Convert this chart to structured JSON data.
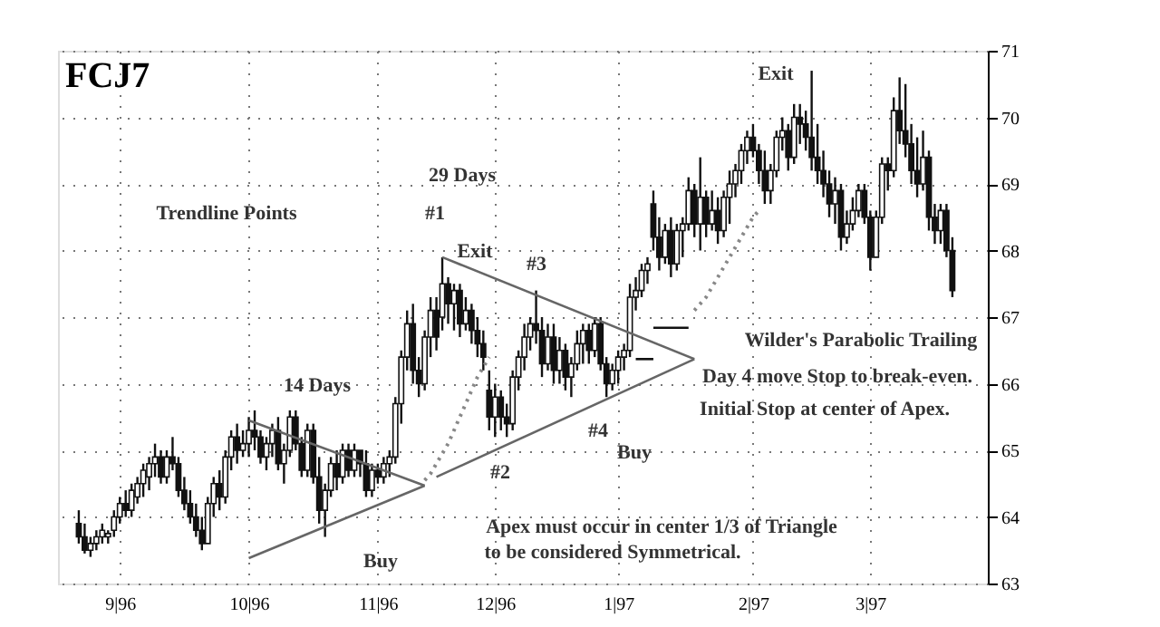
{
  "chart_data": {
    "type": "candlestick",
    "title": "FCJ7",
    "categories": [
      null,
      null,
      null,
      null,
      null,
      null,
      null,
      "9|96",
      null,
      null,
      null,
      null,
      null,
      null,
      null,
      null,
      null,
      null,
      null,
      null,
      null,
      null,
      null,
      null,
      null,
      null,
      null,
      null,
      null,
      "10|96",
      null,
      null,
      null,
      null,
      null,
      null,
      null,
      null,
      null,
      null,
      null,
      null,
      null,
      null,
      null,
      null,
      null,
      null,
      null,
      null,
      null,
      "11|96",
      null,
      null,
      null,
      null,
      null,
      null,
      null,
      null,
      null,
      null,
      null,
      null,
      null,
      null,
      null,
      null,
      null,
      null,
      null,
      "12|96",
      null,
      null,
      null,
      null,
      null,
      null,
      null,
      null,
      null,
      null,
      null,
      null,
      null,
      null,
      null,
      null,
      null,
      null,
      null,
      null,
      "1|97",
      null,
      null,
      null,
      null,
      null,
      null,
      null,
      null,
      null,
      null,
      null,
      null,
      null,
      null,
      null,
      null,
      null,
      null,
      null,
      null,
      null,
      null,
      "2|97",
      null,
      null,
      null,
      null,
      null,
      null,
      null,
      null,
      null,
      null,
      null,
      null,
      null,
      null,
      null,
      null,
      null,
      null,
      null,
      "3|97",
      null,
      null,
      null,
      null,
      null,
      null,
      null,
      null,
      null,
      null,
      null,
      null,
      null,
      null
    ],
    "ohlc": [
      [
        63.9,
        64.1,
        63.6,
        63.7
      ],
      [
        63.7,
        63.9,
        63.45,
        63.5
      ],
      [
        63.5,
        63.7,
        63.4,
        63.6
      ],
      [
        63.6,
        63.8,
        63.5,
        63.7
      ],
      [
        63.7,
        63.9,
        63.6,
        63.8
      ],
      [
        63.7,
        63.8,
        63.6,
        63.75
      ],
      [
        63.8,
        64.1,
        63.7,
        64.0
      ],
      [
        64.0,
        64.3,
        63.9,
        64.2
      ],
      [
        64.2,
        64.4,
        64.0,
        64.1
      ],
      [
        64.1,
        64.5,
        64.0,
        64.4
      ],
      [
        64.3,
        64.6,
        64.2,
        64.5
      ],
      [
        64.5,
        64.8,
        64.3,
        64.7
      ],
      [
        64.6,
        64.9,
        64.4,
        64.8
      ],
      [
        64.8,
        65.1,
        64.6,
        64.9
      ],
      [
        64.9,
        65.0,
        64.5,
        64.6
      ],
      [
        64.6,
        65.0,
        64.5,
        64.9
      ],
      [
        64.9,
        65.2,
        64.7,
        64.8
      ],
      [
        64.8,
        64.9,
        64.3,
        64.4
      ],
      [
        64.4,
        64.6,
        64.1,
        64.2
      ],
      [
        64.2,
        64.4,
        63.9,
        64.0
      ],
      [
        64.0,
        64.2,
        63.7,
        63.8
      ],
      [
        63.8,
        64.0,
        63.5,
        63.6
      ],
      [
        63.6,
        64.3,
        63.6,
        64.2
      ],
      [
        64.2,
        64.6,
        64.0,
        64.5
      ],
      [
        64.5,
        64.7,
        64.1,
        64.3
      ],
      [
        64.3,
        65.0,
        64.2,
        64.9
      ],
      [
        64.9,
        65.3,
        64.7,
        65.2
      ],
      [
        65.2,
        65.4,
        64.8,
        65.0
      ],
      [
        65.0,
        65.3,
        64.9,
        65.1
      ],
      [
        65.1,
        65.5,
        64.9,
        65.3
      ],
      [
        65.3,
        65.6,
        65.0,
        65.2
      ],
      [
        65.2,
        65.3,
        64.8,
        64.9
      ],
      [
        64.9,
        65.2,
        64.7,
        65.1
      ],
      [
        65.1,
        65.4,
        64.9,
        65.3
      ],
      [
        65.3,
        65.5,
        64.7,
        64.8
      ],
      [
        64.8,
        65.1,
        64.5,
        65.0
      ],
      [
        65.0,
        65.6,
        64.9,
        65.5
      ],
      [
        65.5,
        65.6,
        65.0,
        65.1
      ],
      [
        65.1,
        65.2,
        64.6,
        64.7
      ],
      [
        64.7,
        65.4,
        64.6,
        65.3
      ],
      [
        65.3,
        65.4,
        64.5,
        64.6
      ],
      [
        64.6,
        64.9,
        63.9,
        64.1
      ],
      [
        64.1,
        64.5,
        63.7,
        64.4
      ],
      [
        64.4,
        64.9,
        64.3,
        64.8
      ],
      [
        64.8,
        65.0,
        64.4,
        64.6
      ],
      [
        64.6,
        65.1,
        64.5,
        65.0
      ],
      [
        65.0,
        65.1,
        64.6,
        64.7
      ],
      [
        64.7,
        65.1,
        64.6,
        65.0
      ],
      [
        65.0,
        65.0,
        64.6,
        64.8
      ],
      [
        64.8,
        65.0,
        64.3,
        64.4
      ],
      [
        64.4,
        64.8,
        64.3,
        64.7
      ],
      [
        64.7,
        64.8,
        64.5,
        64.6
      ],
      [
        64.6,
        64.9,
        64.5,
        64.8
      ],
      [
        64.8,
        65.0,
        64.6,
        64.9
      ],
      [
        64.9,
        65.8,
        64.8,
        65.7
      ],
      [
        65.7,
        66.5,
        65.4,
        66.4
      ],
      [
        66.4,
        67.1,
        66.2,
        66.9
      ],
      [
        66.9,
        67.2,
        66.0,
        66.2
      ],
      [
        66.2,
        66.4,
        65.8,
        66.0
      ],
      [
        66.0,
        66.8,
        65.9,
        66.7
      ],
      [
        66.7,
        67.3,
        66.4,
        67.1
      ],
      [
        67.1,
        67.3,
        66.5,
        66.7
      ],
      [
        67.0,
        67.9,
        66.8,
        67.5
      ],
      [
        67.5,
        67.6,
        66.9,
        67.2
      ],
      [
        67.2,
        67.5,
        66.8,
        67.4
      ],
      [
        67.4,
        67.5,
        66.7,
        66.9
      ],
      [
        66.9,
        67.3,
        66.8,
        67.1
      ],
      [
        67.1,
        67.2,
        66.6,
        66.8
      ],
      [
        66.8,
        67.0,
        66.4,
        66.6
      ],
      [
        66.6,
        66.8,
        66.2,
        66.4
      ],
      [
        65.9,
        66.2,
        65.3,
        65.5
      ],
      [
        65.5,
        66.0,
        65.2,
        65.8
      ],
      [
        65.8,
        65.9,
        65.3,
        65.5
      ],
      [
        65.5,
        65.7,
        65.2,
        65.4
      ],
      [
        65.4,
        66.2,
        65.3,
        66.1
      ],
      [
        66.1,
        66.5,
        65.9,
        66.4
      ],
      [
        66.4,
        66.9,
        66.2,
        66.7
      ],
      [
        66.7,
        67.0,
        66.5,
        66.9
      ],
      [
        66.9,
        67.4,
        66.6,
        66.8
      ],
      [
        66.8,
        67.0,
        66.1,
        66.3
      ],
      [
        66.3,
        66.9,
        66.2,
        66.7
      ],
      [
        66.7,
        66.9,
        66.0,
        66.2
      ],
      [
        66.2,
        66.7,
        66.0,
        66.5
      ],
      [
        66.5,
        66.6,
        65.9,
        66.1
      ],
      [
        66.1,
        66.4,
        65.8,
        66.3
      ],
      [
        66.3,
        66.8,
        66.2,
        66.6
      ],
      [
        66.6,
        66.9,
        66.3,
        66.8
      ],
      [
        66.8,
        66.9,
        66.3,
        66.5
      ],
      [
        66.5,
        67.0,
        66.4,
        66.9
      ],
      [
        66.9,
        67.0,
        66.2,
        66.3
      ],
      [
        66.3,
        66.4,
        65.8,
        66.0
      ],
      [
        66.0,
        66.3,
        65.9,
        66.2
      ],
      [
        66.2,
        66.5,
        66.0,
        66.4
      ],
      [
        66.4,
        66.6,
        66.2,
        66.5
      ],
      [
        66.5,
        67.5,
        66.4,
        67.3
      ],
      [
        67.3,
        67.6,
        67.1,
        67.4
      ],
      [
        67.4,
        67.8,
        67.3,
        67.7
      ],
      [
        67.7,
        67.9,
        67.5,
        67.8
      ],
      [
        68.7,
        68.9,
        68.0,
        68.2
      ],
      [
        68.2,
        68.5,
        67.7,
        67.9
      ],
      [
        67.9,
        68.4,
        67.8,
        68.3
      ],
      [
        68.3,
        68.5,
        67.6,
        67.8
      ],
      [
        67.8,
        68.4,
        67.7,
        68.3
      ],
      [
        68.3,
        68.5,
        67.9,
        68.4
      ],
      [
        68.4,
        69.1,
        68.3,
        68.9
      ],
      [
        68.9,
        69.0,
        68.2,
        68.4
      ],
      [
        68.4,
        69.4,
        68.0,
        68.8
      ],
      [
        68.8,
        68.9,
        68.2,
        68.4
      ],
      [
        68.4,
        68.9,
        68.3,
        68.6
      ],
      [
        68.6,
        68.8,
        68.1,
        68.3
      ],
      [
        68.3,
        68.9,
        68.2,
        68.8
      ],
      [
        68.8,
        69.2,
        68.4,
        69.0
      ],
      [
        69.0,
        69.3,
        68.8,
        69.2
      ],
      [
        69.2,
        69.6,
        69.0,
        69.5
      ],
      [
        69.5,
        69.8,
        69.3,
        69.7
      ],
      [
        69.7,
        69.9,
        69.4,
        69.5
      ],
      [
        69.5,
        69.6,
        69.0,
        69.2
      ],
      [
        69.2,
        69.5,
        68.7,
        68.9
      ],
      [
        68.9,
        69.3,
        68.7,
        69.2
      ],
      [
        69.2,
        69.8,
        69.1,
        69.7
      ],
      [
        69.7,
        70.0,
        69.5,
        69.8
      ],
      [
        69.8,
        69.9,
        69.2,
        69.4
      ],
      [
        69.4,
        70.2,
        69.3,
        70.0
      ],
      [
        70.0,
        70.2,
        69.6,
        69.9
      ],
      [
        69.9,
        70.1,
        69.5,
        69.7
      ],
      [
        69.7,
        70.7,
        69.2,
        69.4
      ],
      [
        69.4,
        69.9,
        69.0,
        69.2
      ],
      [
        69.2,
        69.5,
        68.8,
        69.0
      ],
      [
        69.0,
        69.2,
        68.5,
        68.7
      ],
      [
        68.7,
        69.1,
        68.4,
        68.9
      ],
      [
        68.9,
        69.0,
        68.0,
        68.2
      ],
      [
        68.2,
        68.6,
        68.1,
        68.4
      ],
      [
        68.4,
        68.8,
        68.3,
        68.6
      ],
      [
        68.6,
        69.0,
        68.5,
        68.9
      ],
      [
        68.9,
        69.0,
        68.4,
        68.5
      ],
      [
        68.5,
        68.6,
        67.7,
        67.9
      ],
      [
        67.9,
        68.6,
        67.9,
        68.5
      ],
      [
        68.5,
        69.4,
        68.4,
        69.3
      ],
      [
        69.3,
        69.4,
        68.9,
        69.2
      ],
      [
        69.2,
        70.3,
        69.1,
        70.1
      ],
      [
        70.1,
        70.6,
        69.6,
        69.8
      ],
      [
        69.8,
        70.5,
        69.4,
        69.6
      ],
      [
        69.6,
        69.9,
        69.0,
        69.2
      ],
      [
        69.2,
        69.7,
        68.8,
        69.0
      ],
      [
        69.0,
        69.8,
        68.9,
        69.4
      ],
      [
        69.4,
        69.5,
        68.3,
        68.5
      ],
      [
        68.5,
        68.7,
        68.1,
        68.3
      ],
      [
        68.3,
        68.7,
        68.1,
        68.6
      ],
      [
        68.6,
        68.7,
        67.9,
        68.0
      ],
      [
        68.0,
        68.2,
        67.3,
        67.4
      ]
    ],
    "color": "#111111",
    "series": [
      {
        "type": "line",
        "color": "#666666",
        "line_style": "solid",
        "values": [
          null,
          null,
          null,
          null,
          null,
          null,
          null,
          null,
          null,
          null,
          null,
          null,
          null,
          null,
          null,
          null,
          null,
          null,
          null,
          null,
          null,
          null,
          null,
          null,
          null,
          null,
          null,
          null,
          null,
          null,
          null,
          null,
          null,
          null,
          null,
          null,
          null,
          null,
          null,
          null,
          null,
          null,
          null,
          null,
          null,
          null,
          null,
          null,
          null,
          null,
          null,
          null,
          null,
          null,
          null,
          null,
          null,
          null,
          null,
          null,
          null,
          null,
          67.9,
          null,
          null,
          null,
          null,
          null,
          null,
          null,
          null,
          null,
          null,
          null,
          null,
          null,
          null,
          null,
          null,
          null,
          null,
          null,
          null,
          null,
          null,
          null,
          null,
          null,
          null,
          null,
          null,
          null,
          null,
          null,
          null,
          null,
          null,
          null,
          null,
          null,
          null,
          null,
          null,
          null,
          null,
          66.37,
          null,
          null,
          null,
          null,
          null,
          null,
          null,
          null,
          null,
          null,
          null,
          null,
          null,
          null,
          null,
          null,
          null,
          null,
          null,
          null,
          null,
          null,
          null,
          null,
          null,
          null,
          null,
          null,
          null,
          null,
          null,
          null,
          null,
          null,
          null,
          null,
          null,
          null,
          null,
          null,
          null,
          null,
          null,
          null
        ]
      },
      {
        "type": "line",
        "color": "#666666",
        "line_style": "solid",
        "values": [
          null,
          null,
          null,
          null,
          null,
          null,
          null,
          null,
          null,
          null,
          null,
          null,
          null,
          null,
          null,
          null,
          null,
          null,
          null,
          null,
          null,
          null,
          null,
          null,
          null,
          null,
          null,
          null,
          null,
          null,
          null,
          null,
          null,
          null,
          null,
          null,
          null,
          null,
          null,
          null,
          null,
          null,
          null,
          null,
          null,
          null,
          null,
          null,
          null,
          null,
          null,
          null,
          null,
          null,
          null,
          null,
          null,
          null,
          null,
          null,
          null,
          64.6,
          null,
          null,
          null,
          null,
          null,
          null,
          null,
          null,
          null,
          null,
          null,
          null,
          null,
          null,
          null,
          null,
          null,
          null,
          null,
          null,
          null,
          null,
          null,
          null,
          null,
          null,
          null,
          null,
          null,
          null,
          null,
          null,
          null,
          null,
          null,
          null,
          null,
          null,
          null,
          null,
          null,
          null,
          null,
          66.37,
          null,
          null,
          null,
          null,
          null,
          null,
          null,
          null,
          null,
          null,
          null,
          null,
          null,
          null,
          null,
          null,
          null,
          null,
          null,
          null,
          null,
          null,
          null,
          null,
          null,
          null,
          null,
          null,
          null,
          null,
          null,
          null,
          null,
          null,
          null,
          null,
          null,
          null,
          null,
          null,
          null,
          null,
          null,
          null
        ]
      },
      {
        "type": "line",
        "color": "#666666",
        "line_style": "solid",
        "values": [
          null,
          null,
          null,
          null,
          null,
          null,
          null,
          null,
          null,
          null,
          null,
          null,
          null,
          null,
          null,
          null,
          null,
          null,
          null,
          null,
          null,
          null,
          null,
          null,
          null,
          null,
          null,
          null,
          null,
          65.45,
          null,
          null,
          null,
          null,
          null,
          null,
          null,
          null,
          null,
          null,
          null,
          null,
          null,
          null,
          null,
          null,
          null,
          null,
          null,
          null,
          null,
          null,
          null,
          null,
          null,
          null,
          null,
          null,
          null,
          64.47,
          null,
          null,
          null,
          null,
          null,
          null,
          null,
          null,
          null,
          null,
          null,
          null,
          null,
          null,
          null,
          null,
          null,
          null,
          null,
          null,
          null,
          null,
          null,
          null,
          null,
          null,
          null,
          null,
          null,
          null,
          null,
          null,
          null,
          null,
          null,
          null,
          null,
          null,
          null,
          null,
          null,
          null,
          null,
          null,
          null,
          null,
          null,
          null,
          null,
          null,
          null,
          null,
          null,
          null,
          null,
          null,
          null,
          null,
          null,
          null,
          null,
          null,
          null,
          null,
          null,
          null,
          null,
          null,
          null,
          null,
          null,
          null,
          null,
          null,
          null,
          null,
          null,
          null,
          null,
          null,
          null,
          null,
          null,
          null,
          null,
          null,
          null,
          null,
          null,
          null
        ]
      },
      {
        "type": "line",
        "color": "#666666",
        "line_style": "solid",
        "values": [
          null,
          null,
          null,
          null,
          null,
          null,
          null,
          null,
          null,
          null,
          null,
          null,
          null,
          null,
          null,
          null,
          null,
          null,
          null,
          null,
          null,
          null,
          null,
          null,
          null,
          null,
          null,
          null,
          null,
          63.38,
          null,
          null,
          null,
          null,
          null,
          null,
          null,
          null,
          null,
          null,
          null,
          null,
          null,
          null,
          null,
          null,
          null,
          null,
          null,
          null,
          null,
          null,
          null,
          null,
          null,
          null,
          null,
          null,
          null,
          64.47,
          null,
          null,
          null,
          null,
          null,
          null,
          null,
          null,
          null,
          null,
          null,
          null,
          null,
          null,
          null,
          null,
          null,
          null,
          null,
          null,
          null,
          null,
          null,
          null,
          null,
          null,
          null,
          null,
          null,
          null,
          null,
          null,
          null,
          null,
          null,
          null,
          null,
          null,
          null,
          null,
          null,
          null,
          null,
          null,
          null,
          null,
          null,
          null,
          null,
          null,
          null,
          null,
          null,
          null,
          null,
          null,
          null,
          null,
          null,
          null,
          null,
          null,
          null,
          null,
          null,
          null,
          null,
          null,
          null,
          null,
          null,
          null,
          null,
          null,
          null,
          null,
          null,
          null,
          null,
          null,
          null,
          null,
          null,
          null,
          null,
          null,
          null,
          null,
          null,
          null
        ]
      },
      {
        "type": "line",
        "color": "#888888",
        "line_style": "dotted",
        "values": [
          null,
          null,
          null,
          null,
          null,
          null,
          null,
          null,
          null,
          null,
          null,
          null,
          null,
          null,
          null,
          null,
          null,
          null,
          null,
          null,
          null,
          null,
          null,
          null,
          null,
          null,
          null,
          null,
          null,
          null,
          null,
          null,
          null,
          null,
          null,
          null,
          null,
          null,
          null,
          null,
          null,
          null,
          null,
          null,
          null,
          null,
          null,
          null,
          null,
          null,
          null,
          null,
          null,
          null,
          null,
          null,
          null,
          null,
          null,
          64.55,
          64.65,
          64.8,
          64.95,
          65.1,
          65.3,
          65.5,
          65.7,
          65.9,
          66.1,
          66.25,
          66.4,
          null,
          null,
          null,
          null,
          null,
          null,
          null,
          null,
          null,
          null,
          null,
          null,
          null,
          null,
          null,
          null,
          null,
          null,
          null,
          null,
          null,
          null,
          null,
          null,
          null,
          null,
          null,
          null,
          null,
          null,
          null,
          null,
          null,
          null,
          null,
          null,
          null,
          null,
          null,
          null,
          null,
          null,
          null,
          null,
          null,
          null,
          null,
          null,
          null,
          null,
          null,
          null,
          null,
          null,
          null,
          null,
          null,
          null,
          null,
          null,
          null,
          null,
          null,
          null,
          null,
          null,
          null,
          null,
          null,
          null,
          null,
          null,
          null,
          null,
          null,
          null,
          null,
          null,
          null
        ]
      },
      {
        "type": "line",
        "color": "#888888",
        "line_style": "dotted",
        "values": [
          null,
          null,
          null,
          null,
          null,
          null,
          null,
          null,
          null,
          null,
          null,
          null,
          null,
          null,
          null,
          null,
          null,
          null,
          null,
          null,
          null,
          null,
          null,
          null,
          null,
          null,
          null,
          null,
          null,
          null,
          null,
          null,
          null,
          null,
          null,
          null,
          null,
          null,
          null,
          null,
          null,
          null,
          null,
          null,
          null,
          null,
          null,
          null,
          null,
          null,
          null,
          null,
          null,
          null,
          null,
          null,
          null,
          null,
          null,
          null,
          null,
          null,
          null,
          null,
          null,
          null,
          null,
          null,
          null,
          null,
          null,
          null,
          null,
          null,
          null,
          null,
          null,
          null,
          null,
          null,
          null,
          null,
          null,
          null,
          null,
          null,
          null,
          null,
          null,
          null,
          null,
          null,
          null,
          null,
          null,
          null,
          null,
          null,
          null,
          null,
          null,
          null,
          null,
          null,
          null,
          67.1,
          67.2,
          67.3,
          67.45,
          67.6,
          67.75,
          67.9,
          68.05,
          68.2,
          68.35,
          68.5,
          68.6,
          null,
          null,
          null,
          null,
          null,
          null,
          null,
          null,
          null,
          null,
          null,
          null,
          null,
          null,
          null,
          null,
          null,
          null,
          null,
          null,
          null,
          null,
          null,
          null,
          null,
          null,
          null,
          null,
          null,
          null,
          null,
          null,
          null
        ]
      },
      {
        "type": "line",
        "color": "#111111",
        "line_style": "solid",
        "values": [
          null,
          null,
          null,
          null,
          null,
          null,
          null,
          null,
          null,
          null,
          null,
          null,
          null,
          null,
          null,
          null,
          null,
          null,
          null,
          null,
          null,
          null,
          null,
          null,
          null,
          null,
          null,
          null,
          null,
          null,
          null,
          null,
          null,
          null,
          null,
          null,
          null,
          null,
          null,
          null,
          null,
          null,
          null,
          null,
          null,
          null,
          null,
          null,
          null,
          null,
          null,
          null,
          null,
          null,
          null,
          null,
          null,
          null,
          null,
          null,
          null,
          null,
          null,
          null,
          null,
          null,
          null,
          null,
          null,
          null,
          null,
          null,
          null,
          null,
          null,
          null,
          null,
          null,
          null,
          null,
          null,
          null,
          null,
          null,
          null,
          null,
          null,
          null,
          null,
          null,
          null,
          null,
          null,
          null,
          null,
          null,
          null,
          null,
          66.84,
          66.84,
          66.84,
          66.84,
          66.84,
          66.84,
          66.84,
          null,
          null,
          null,
          null,
          null,
          null,
          null,
          null,
          null,
          null,
          null,
          null,
          null,
          null,
          null,
          null,
          null,
          null,
          null,
          null,
          null,
          null,
          null,
          null,
          null,
          null,
          null,
          null,
          null,
          null,
          null,
          null,
          null,
          null,
          null,
          null,
          null,
          null,
          null,
          null,
          null,
          null,
          null,
          null,
          null
        ]
      },
      {
        "type": "line",
        "color": "#111111",
        "line_style": "solid",
        "values": [
          null,
          null,
          null,
          null,
          null,
          null,
          null,
          null,
          null,
          null,
          null,
          null,
          null,
          null,
          null,
          null,
          null,
          null,
          null,
          null,
          null,
          null,
          null,
          null,
          null,
          null,
          null,
          null,
          null,
          null,
          null,
          null,
          null,
          null,
          null,
          null,
          null,
          null,
          null,
          null,
          null,
          null,
          null,
          null,
          null,
          null,
          null,
          null,
          null,
          null,
          null,
          null,
          null,
          null,
          null,
          null,
          null,
          null,
          null,
          null,
          null,
          null,
          null,
          null,
          null,
          null,
          null,
          null,
          null,
          null,
          null,
          null,
          null,
          null,
          null,
          null,
          null,
          null,
          null,
          null,
          null,
          null,
          null,
          null,
          null,
          null,
          null,
          null,
          null,
          null,
          null,
          null,
          null,
          null,
          null,
          66.37,
          66.37,
          66.37,
          66.37,
          null,
          null,
          null,
          null,
          null,
          null,
          null,
          null,
          null,
          null,
          null,
          null,
          null,
          null,
          null,
          null,
          null,
          null,
          null,
          null,
          null,
          null,
          null,
          null,
          null,
          null,
          null,
          null,
          null,
          null,
          null,
          null,
          null,
          null,
          null,
          null,
          null,
          null,
          null,
          null,
          null,
          null,
          null,
          null,
          null,
          null,
          null,
          null,
          null,
          null,
          null
        ]
      }
    ],
    "annotations": [
      "Trendline Points",
      "#1",
      "29 Days",
      "Exit",
      "#3",
      "#2",
      "#4",
      "Buy",
      "Buy",
      "14 Days",
      "Exit",
      "Wilder's Parabolic Trailing",
      "Day 4 move Stop to break-even.",
      "Initial Stop at center of Apex.",
      "Apex must occur in center 1/3 of Triangle",
      "to be considered Symmetrical."
    ],
    "ylim": [
      63,
      71
    ],
    "yticks": [
      63,
      64,
      65,
      66,
      67,
      68,
      69,
      70,
      71
    ],
    "grid": true
  }
}
